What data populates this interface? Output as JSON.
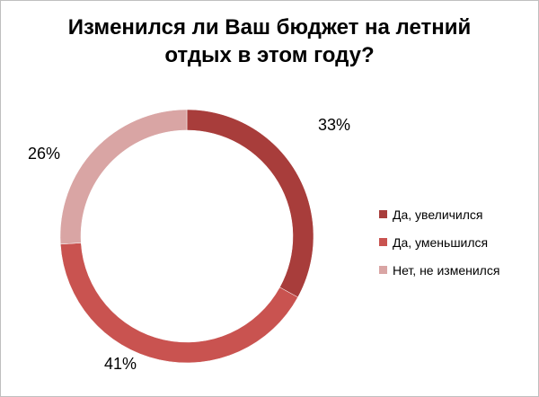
{
  "chart_data": {
    "type": "pie",
    "variant": "doughnut",
    "title": "Изменился ли Ваш бюджет на летний отдых в этом году?",
    "title_lines": [
      "Изменился ли Ваш бюджет на летний",
      "отдых в этом году?"
    ],
    "categories": [
      "Да, увеличился",
      "Да, уменьшился",
      "Нет, не изменился"
    ],
    "values": [
      33,
      41,
      26
    ],
    "labels": [
      "33%",
      "41%",
      "26%"
    ],
    "colors": [
      "#a83d3b",
      "#c95350",
      "#d9a5a4"
    ],
    "legend_position": "right"
  }
}
